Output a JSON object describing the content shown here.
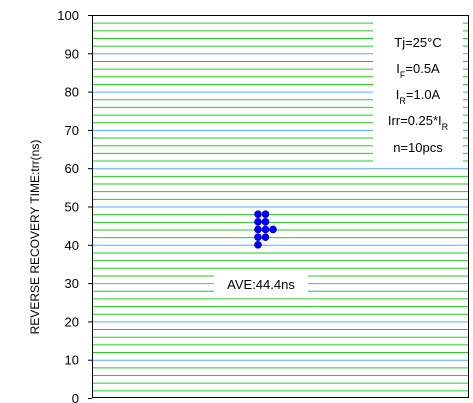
{
  "chart_data": {
    "type": "scatter",
    "title": "",
    "xlabel": "",
    "ylabel": "REVERSE RECOVERY TIME:trr(ns)",
    "ylim": [
      0,
      100
    ],
    "yticks": [
      0,
      10,
      20,
      30,
      40,
      50,
      60,
      70,
      80,
      90,
      100
    ],
    "grid": true,
    "colors": {
      "major_grid": "#55aaff",
      "minor_grid": "#22cc22",
      "points": "#0000ee"
    },
    "series": [
      {
        "points": [
          {
            "x": 0,
            "y": 40
          },
          {
            "x": 0,
            "y": 42
          },
          {
            "x": 0,
            "y": 44
          },
          {
            "x": 0,
            "y": 46
          },
          {
            "x": 0,
            "y": 48
          },
          {
            "x": 1,
            "y": 42
          },
          {
            "x": 1,
            "y": 44
          },
          {
            "x": 1,
            "y": 46
          },
          {
            "x": 1,
            "y": 48
          },
          {
            "x": 2,
            "y": 44
          }
        ]
      }
    ],
    "legend": {
      "placement": "top-right",
      "lines": [
        {
          "text": "Tj=25°C",
          "sub": ""
        },
        {
          "text": "I",
          "sub": "F",
          "tail": "=0.5A"
        },
        {
          "text": "I",
          "sub": "R",
          "tail": "=1.0A"
        },
        {
          "text": "Irr=0.25*I",
          "sub": "R",
          "tail": ""
        },
        {
          "text": "n=10pcs",
          "sub": ""
        }
      ]
    },
    "annotation": {
      "text": "AVE:44.4ns",
      "value": 44.4,
      "unit": "ns"
    }
  }
}
